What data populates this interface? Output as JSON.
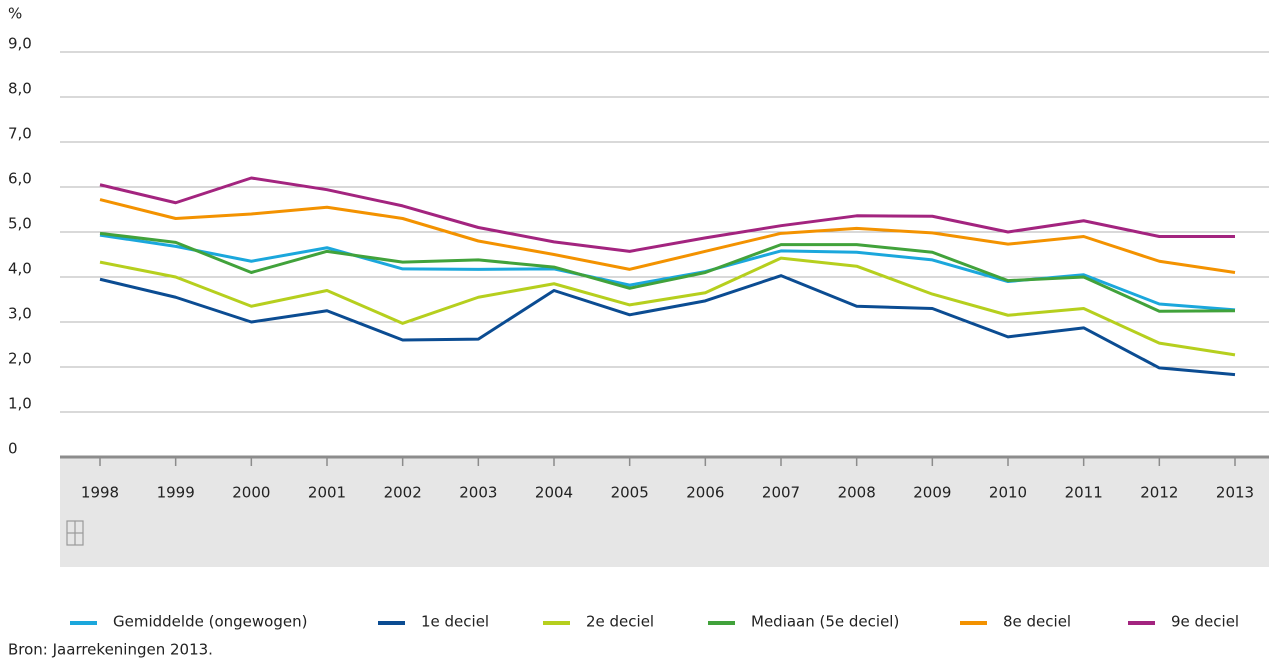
{
  "chart_data": {
    "type": "line",
    "y_label": "%",
    "source": "Bron: Jaarrekeningen 2013.",
    "categories": [
      "1998",
      "1999",
      "2000",
      "2001",
      "2002",
      "2003",
      "2004",
      "2005",
      "2006",
      "2007",
      "2008",
      "2009",
      "2010",
      "2011",
      "2012",
      "2013"
    ],
    "ylim": [
      0,
      9
    ],
    "yticks": [
      0,
      {
        "value": 1,
        "label": "1,0"
      },
      {
        "value": 2,
        "label": "2,0"
      },
      {
        "value": 3,
        "label": "3,0"
      },
      {
        "value": 4,
        "label": "4,0"
      },
      {
        "value": 5,
        "label": "5,0"
      },
      {
        "value": 6,
        "label": "6,0"
      },
      {
        "value": 7,
        "label": "7,0"
      },
      {
        "value": 8,
        "label": "8,0"
      },
      {
        "value": 9,
        "label": "9,0"
      }
    ],
    "grid": true,
    "series": [
      {
        "name": "Gemiddelde (ongewogen)",
        "color": "#1ba7dc",
        "values": [
          4.93,
          4.68,
          4.35,
          4.65,
          4.18,
          4.17,
          4.18,
          3.82,
          4.12,
          4.58,
          4.55,
          4.38,
          3.9,
          4.05,
          3.4,
          3.27
        ]
      },
      {
        "name": "1e deciel",
        "color": "#0b4c92",
        "values": [
          3.95,
          3.55,
          3.0,
          3.25,
          2.6,
          2.62,
          3.7,
          3.16,
          3.47,
          4.03,
          3.35,
          3.3,
          2.67,
          2.87,
          1.98,
          1.83
        ]
      },
      {
        "name": "2e deciel",
        "color": "#b6cf1e",
        "values": [
          4.33,
          4.0,
          3.35,
          3.7,
          2.97,
          3.55,
          3.85,
          3.38,
          3.65,
          4.42,
          4.24,
          3.62,
          3.15,
          3.3,
          2.53,
          2.27
        ]
      },
      {
        "name": "Mediaan (5e deciel)",
        "color": "#41a23b",
        "values": [
          4.97,
          4.77,
          4.1,
          4.57,
          4.33,
          4.38,
          4.22,
          3.75,
          4.1,
          4.72,
          4.72,
          4.55,
          3.92,
          4.0,
          3.24,
          3.25
        ]
      },
      {
        "name": "8e deciel",
        "color": "#f39200",
        "values": [
          5.72,
          5.3,
          5.4,
          5.55,
          5.3,
          4.8,
          4.5,
          4.17,
          4.57,
          4.97,
          5.08,
          4.98,
          4.73,
          4.9,
          4.35,
          4.1
        ]
      },
      {
        "name": "9e deciel",
        "color": "#a3247f",
        "values": [
          6.05,
          5.65,
          6.2,
          5.94,
          5.58,
          5.1,
          4.78,
          4.57,
          4.87,
          5.14,
          5.36,
          5.35,
          5.0,
          5.25,
          4.9,
          4.9
        ]
      }
    ]
  }
}
